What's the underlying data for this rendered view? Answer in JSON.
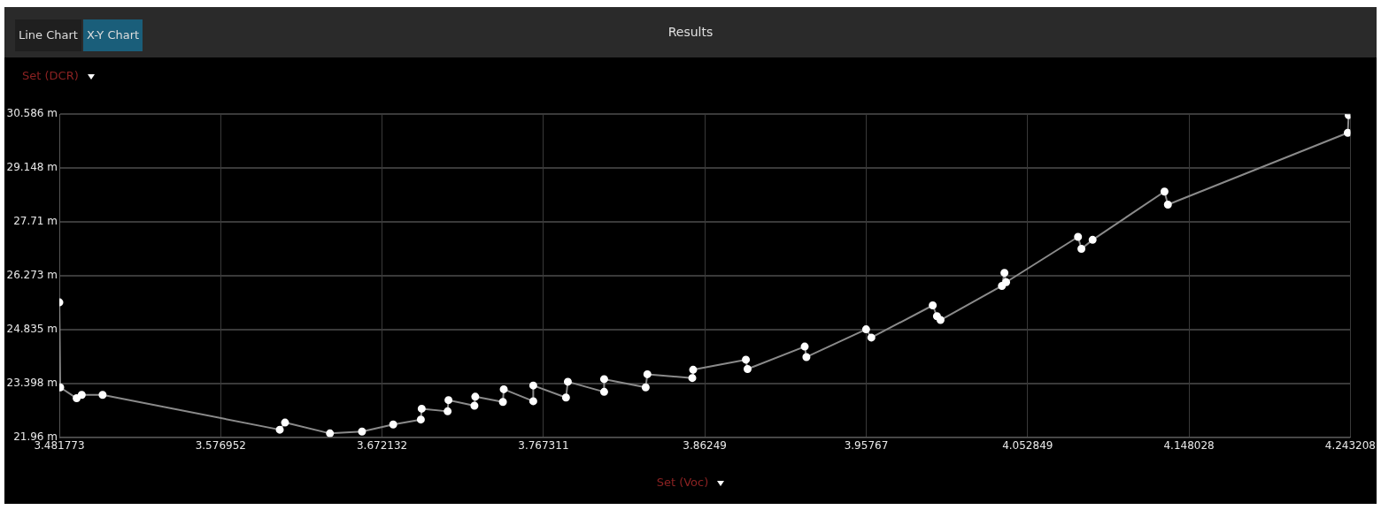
{
  "chart_data": {
    "type": "line",
    "title": "Results",
    "xlabel": "Set (Voc)",
    "ylabel": "Set (DCR)",
    "x": [
      3.4818,
      3.4823,
      3.492,
      3.495,
      3.5073,
      3.6118,
      3.6149,
      3.6414,
      3.6603,
      3.6787,
      3.695,
      3.6955,
      3.7108,
      3.7113,
      3.7266,
      3.7271,
      3.7434,
      3.7439,
      3.7613,
      3.7613,
      3.7806,
      3.7817,
      3.8031,
      3.8031,
      3.8276,
      3.8286,
      3.8551,
      3.8556,
      3.8867,
      3.8877,
      3.9214,
      3.9224,
      3.9576,
      3.9607,
      3.9969,
      3.9994,
      4.0015,
      4.0377,
      4.0392,
      4.0402,
      4.0826,
      4.0846,
      4.0912,
      4.1336,
      4.1356,
      4.2417,
      4.2422
    ],
    "series": [
      {
        "color": "#ffffff",
        "values": [
          25.56,
          23.29,
          23.0,
          23.09,
          23.09,
          22.16,
          22.35,
          22.06,
          22.11,
          22.3,
          22.43,
          22.72,
          22.65,
          22.95,
          22.8,
          23.04,
          22.9,
          23.24,
          22.92,
          23.34,
          23.02,
          23.44,
          23.17,
          23.51,
          23.29,
          23.64,
          23.54,
          23.76,
          24.03,
          23.78,
          24.38,
          24.1,
          24.84,
          24.62,
          25.48,
          25.19,
          25.09,
          26.0,
          26.35,
          26.1,
          27.31,
          26.99,
          27.23,
          28.52,
          28.17,
          30.09,
          30.56
        ]
      }
    ],
    "xlim": [
      3.481773,
      4.243208
    ],
    "xticks": [
      3.481773,
      3.576952,
      3.672132,
      3.767311,
      3.86249,
      3.95767,
      4.052849,
      4.148028,
      4.243208
    ],
    "ylim": [
      21.96,
      30.586
    ],
    "yticks": [
      {
        "value": 21.96,
        "label": "21.96 m"
      },
      {
        "value": 23.398,
        "label": "23.398 m"
      },
      {
        "value": 24.835,
        "label": "24.835 m"
      },
      {
        "value": 26.273,
        "label": "26.273 m"
      },
      {
        "value": 27.71,
        "label": "27.71 m"
      },
      {
        "value": 29.148,
        "label": "29.148 m"
      },
      {
        "value": 30.586,
        "label": "30.586 m"
      }
    ],
    "annotations": [
      "Line Chart",
      "X-Y Chart"
    ],
    "grid": true,
    "legend": false,
    "marker": "circle",
    "line_style": "solid"
  }
}
